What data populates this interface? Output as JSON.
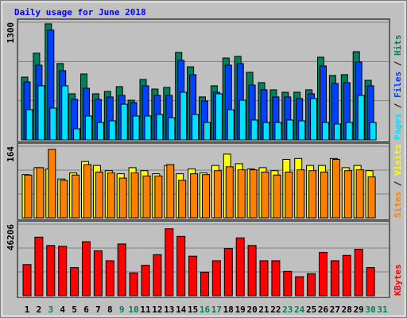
{
  "chart_data": [
    {
      "type": "bar",
      "title": "Daily usage for June 2018",
      "title_color": "#0000ff",
      "ylim": [
        0,
        1300
      ],
      "yticks": [
        1300
      ],
      "grid": true,
      "separator": " / ",
      "series": [
        {
          "name": "Hits",
          "color": "#00805c",
          "values": [
            694,
            958,
            1283,
            844,
            510,
            729,
            510,
            536,
            589,
            439,
            668,
            562,
            580,
            967,
            808,
            475,
            598,
            905,
            923,
            747,
            633,
            554,
            527,
            527,
            554,
            914,
            712,
            721,
            975,
            659,
            null
          ]
        },
        {
          "name": "Files",
          "color": "#0040ff",
          "values": [
            641,
            826,
            1213,
            765,
            448,
            571,
            448,
            475,
            492,
            413,
            598,
            492,
            492,
            879,
            721,
            431,
            527,
            826,
            844,
            606,
            554,
            475,
            475,
            457,
            510,
            817,
            624,
            633,
            861,
            598,
            null
          ]
        },
        {
          "name": "Pages",
          "color": "#00e0ff",
          "values": [
            334,
            598,
            351,
            598,
            123,
            264,
            193,
            211,
            395,
            264,
            264,
            281,
            246,
            527,
            281,
            193,
            510,
            334,
            439,
            220,
            193,
            193,
            220,
            211,
            457,
            193,
            176,
            193,
            492,
            193,
            null
          ]
        }
      ]
    },
    {
      "type": "bar",
      "ylim": [
        0,
        164
      ],
      "yticks": [
        164
      ],
      "grid": true,
      "separator": " / ",
      "series": [
        {
          "name": "Visits",
          "color": "#ffff00",
          "values": [
            99,
            115,
            112,
            89,
            103,
            129,
            120,
            108,
            101,
            115,
            108,
            101,
            120,
            101,
            112,
            103,
            120,
            146,
            124,
            112,
            115,
            108,
            134,
            136,
            120,
            120,
            136,
            115,
            120,
            108,
            null
          ]
        },
        {
          "name": "Sites",
          "color": "#ff8000",
          "values": [
            98,
            115,
            157,
            86,
            98,
            122,
            105,
            103,
            91,
            103,
            96,
            96,
            122,
            86,
            101,
            99,
            108,
            117,
            110,
            110,
            105,
            98,
            105,
            110,
            108,
            105,
            134,
            108,
            110,
            94,
            null
          ]
        }
      ]
    },
    {
      "type": "bar",
      "ylim": [
        0,
        46206
      ],
      "yticks": [
        46206
      ],
      "grid": true,
      "categories": [
        "1",
        "2",
        "3",
        "4",
        "5",
        "6",
        "7",
        "8",
        "9",
        "10",
        "11",
        "12",
        "13",
        "14",
        "15",
        "16",
        "17",
        "18",
        "19",
        "20",
        "21",
        "22",
        "23",
        "24",
        "25",
        "26",
        "27",
        "28",
        "29",
        "30",
        "31"
      ],
      "weekend": [
        false,
        false,
        true,
        false,
        false,
        false,
        false,
        false,
        true,
        true,
        false,
        false,
        false,
        false,
        false,
        true,
        true,
        false,
        false,
        false,
        false,
        false,
        true,
        true,
        false,
        false,
        false,
        false,
        false,
        true,
        true
      ],
      "weekend_color": "#00805c",
      "series": [
        {
          "name": "KBytes",
          "color": "#ff0000",
          "values": [
            20154,
            37850,
            32443,
            31951,
            18188,
            34901,
            29002,
            22612,
            33426,
            14747,
            19662,
            26544,
            43257,
            38342,
            25561,
            15238,
            22612,
            30476,
            37359,
            32443,
            22612,
            22612,
            15730,
            12289,
            14255,
            28019,
            22612,
            26053,
            29985,
            18188,
            null
          ]
        }
      ]
    }
  ]
}
